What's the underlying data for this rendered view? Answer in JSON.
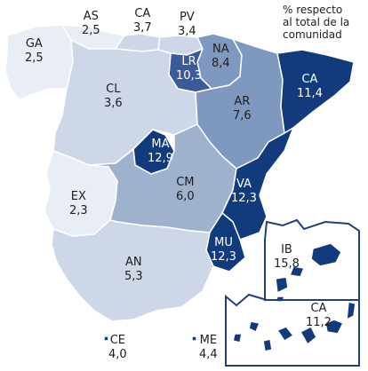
{
  "legend": {
    "lines": [
      "% respecto",
      "al total de la",
      "comunidad"
    ]
  },
  "colors": {
    "background": "#ffffff",
    "border": "#ffffff",
    "inset_frame": "#1f3f7f",
    "scale": [
      "#e9eef6",
      "#cdd7e7",
      "#9eb1cd",
      "#7f98bf",
      "#3b5a99",
      "#123b7e"
    ]
  },
  "regions": [
    {
      "code": "GA",
      "name_value": "2,5",
      "fill": "#e9eef6"
    },
    {
      "code": "AS",
      "name_value": "2,5",
      "fill": "#e9eef6"
    },
    {
      "code": "CA",
      "name_value": "3,7",
      "fill": "#cdd7e7"
    },
    {
      "code": "PV",
      "name_value": "3,4",
      "fill": "#cdd7e7"
    },
    {
      "code": "NA",
      "name_value": "8,4",
      "fill": "#7f98bf"
    },
    {
      "code": "LR",
      "name_value": "10,3",
      "fill": "#3b5a99"
    },
    {
      "code": "CL",
      "name_value": "3,6",
      "fill": "#cdd7e7"
    },
    {
      "code": "AR",
      "name_value": "7,6",
      "fill": "#7f98bf"
    },
    {
      "code": "CA",
      "name_value": "11,4",
      "fill": "#123b7e"
    },
    {
      "code": "MA",
      "name_value": "12,9",
      "fill": "#123b7e"
    },
    {
      "code": "EX",
      "name_value": "2,3",
      "fill": "#e9eef6"
    },
    {
      "code": "CM",
      "name_value": "6,0",
      "fill": "#9eb1cd"
    },
    {
      "code": "VA",
      "name_value": "12,3",
      "fill": "#123b7e"
    },
    {
      "code": "MU",
      "name_value": "12,3",
      "fill": "#123b7e"
    },
    {
      "code": "AN",
      "name_value": "5,3",
      "fill": "#cdd7e7"
    },
    {
      "code": "IB",
      "name_value": "15,8",
      "fill": "#123b7e"
    },
    {
      "code": "CA",
      "name_value": "11,2",
      "fill": "#123b7e"
    },
    {
      "code": "CE",
      "name_value": "4,0",
      "fill": "#123b7e"
    },
    {
      "code": "ME",
      "name_value": "4,4",
      "fill": "#123b7e"
    }
  ]
}
